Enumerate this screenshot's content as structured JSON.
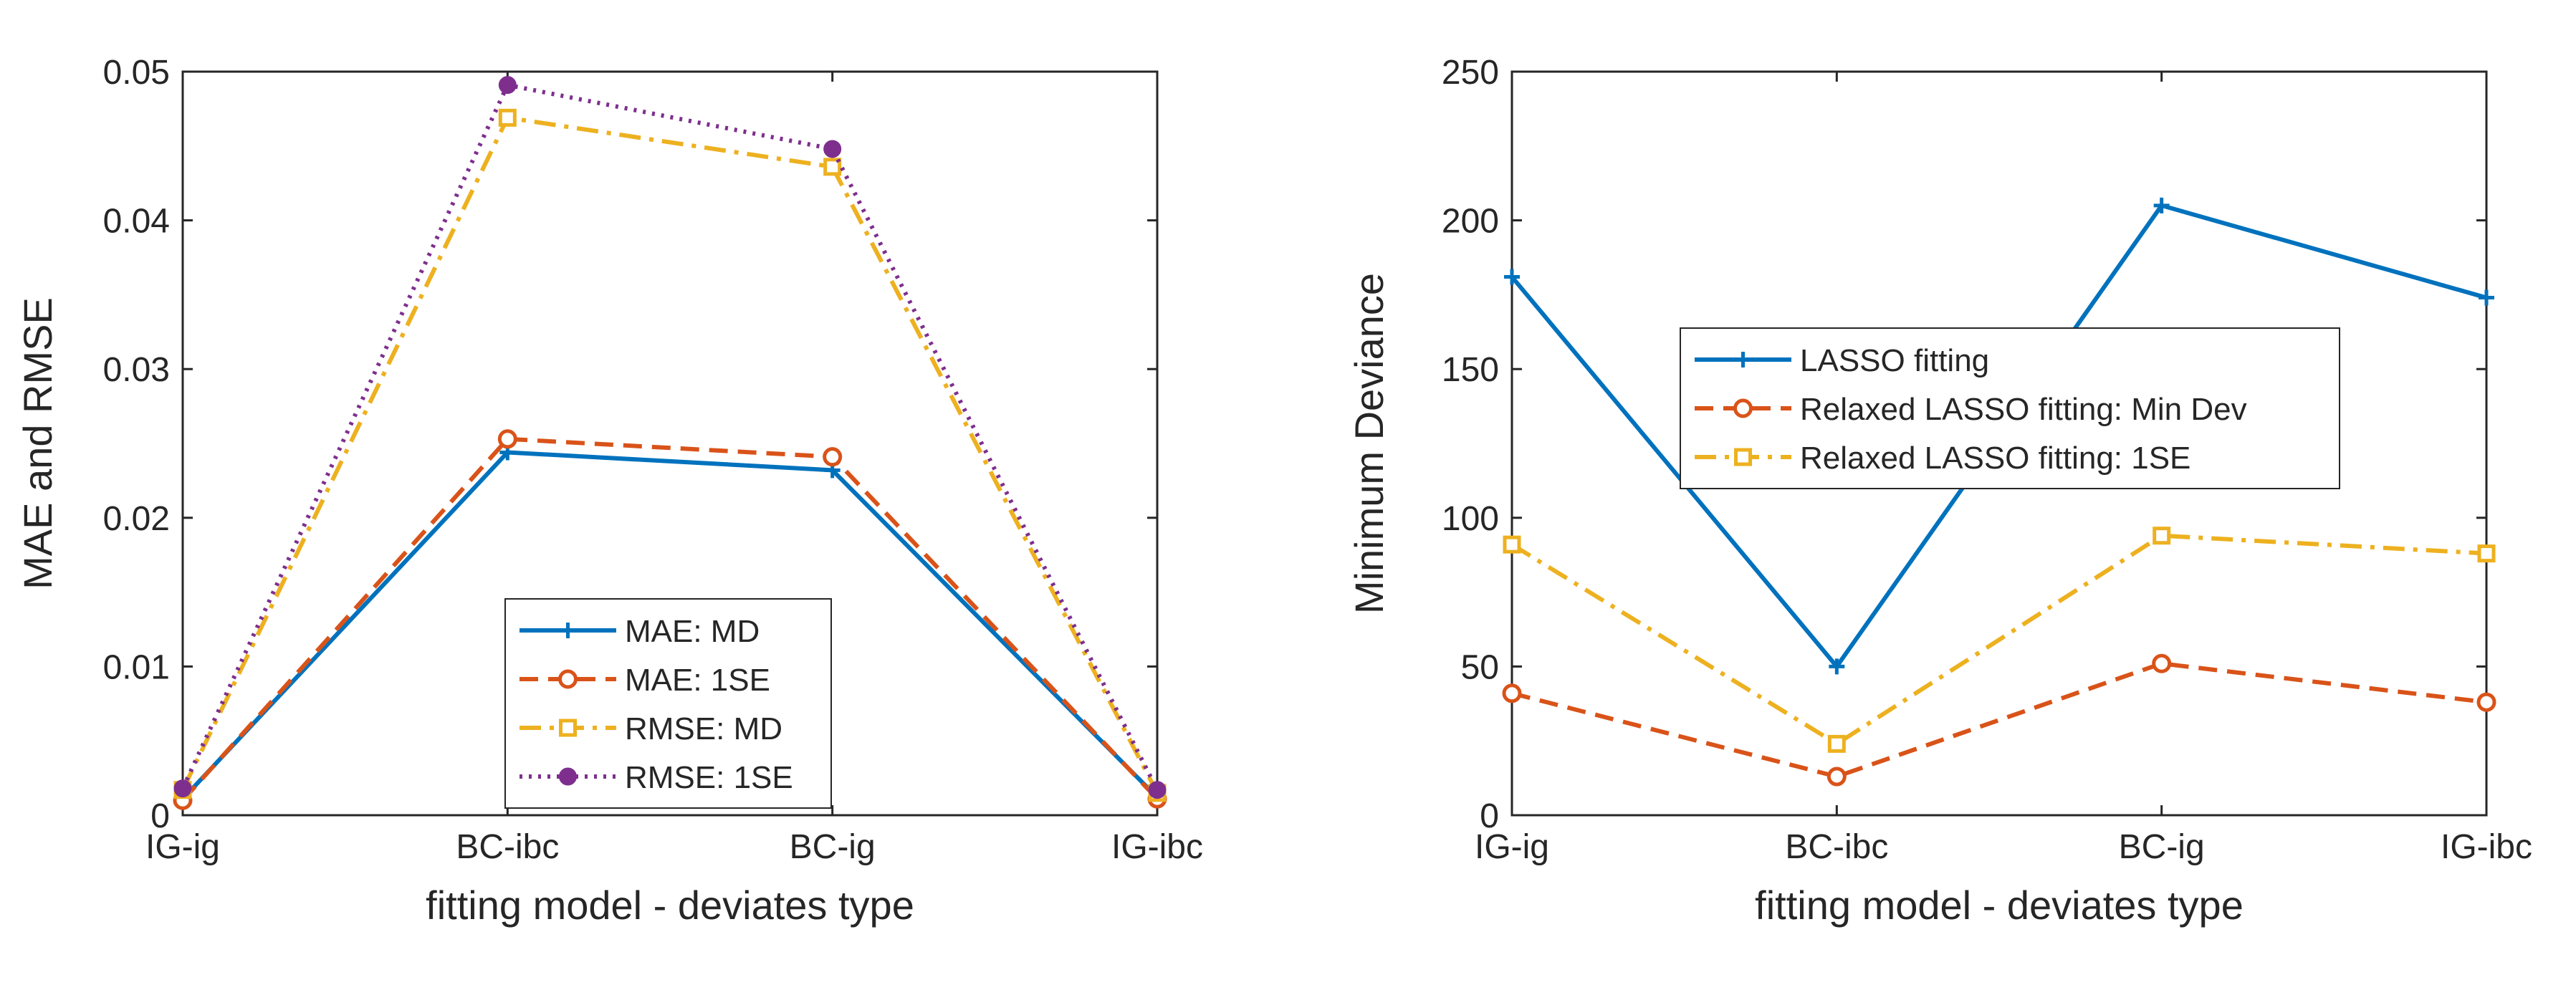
{
  "colors": {
    "blue": "#0072BD",
    "orange": "#D95319",
    "yellow": "#EDB120",
    "purple": "#7E2F8E",
    "axis": "#262626"
  },
  "chart_data": [
    {
      "type": "line",
      "title": "",
      "xlabel": "fitting model - deviates type",
      "ylabel": "MAE and RMSE",
      "categories": [
        "IG-ig",
        "BC-ibc",
        "BC-ig",
        "IG-ibc"
      ],
      "ylim": [
        0,
        0.05
      ],
      "yticks": [
        0,
        0.01,
        0.02,
        0.03,
        0.04,
        0.05
      ],
      "ytick_labels": [
        "0",
        "0.01",
        "0.02",
        "0.03",
        "0.04",
        "0.05"
      ],
      "grid": false,
      "legend_position": "bottom-center",
      "series": [
        {
          "name": "MAE: MD",
          "values": [
            0.0011,
            0.0244,
            0.0232,
            0.0012
          ],
          "color": "blue",
          "dash": "solid",
          "marker": "plus"
        },
        {
          "name": "MAE: 1SE",
          "values": [
            0.001,
            0.0253,
            0.0241,
            0.0011
          ],
          "color": "orange",
          "dash": "dashed",
          "marker": "circle"
        },
        {
          "name": "RMSE: MD",
          "values": [
            0.0017,
            0.0469,
            0.0436,
            0.0015
          ],
          "color": "yellow",
          "dash": "dashdot",
          "marker": "square"
        },
        {
          "name": "RMSE: 1SE",
          "values": [
            0.0018,
            0.0491,
            0.0448,
            0.0017
          ],
          "color": "purple",
          "dash": "dotted",
          "marker": "filled-circle"
        }
      ]
    },
    {
      "type": "line",
      "title": "",
      "xlabel": "fitting model - deviates type",
      "ylabel": "Minimum Deviance",
      "categories": [
        "IG-ig",
        "BC-ibc",
        "BC-ig",
        "IG-ibc"
      ],
      "ylim": [
        0,
        250
      ],
      "yticks": [
        0,
        50,
        100,
        150,
        200,
        250
      ],
      "ytick_labels": [
        "0",
        "50",
        "100",
        "150",
        "200",
        "250"
      ],
      "grid": false,
      "legend_position": "top-center",
      "series": [
        {
          "name": "LASSO fitting",
          "values": [
            181,
            50,
            205,
            174
          ],
          "color": "blue",
          "dash": "solid",
          "marker": "plus"
        },
        {
          "name": "Relaxed LASSO fitting: Min Dev",
          "values": [
            41,
            13,
            51,
            38
          ],
          "color": "orange",
          "dash": "dashed",
          "marker": "circle"
        },
        {
          "name": "Relaxed LASSO fitting: 1SE",
          "values": [
            91,
            24,
            94,
            88
          ],
          "color": "yellow",
          "dash": "dashdot",
          "marker": "square"
        }
      ]
    }
  ]
}
